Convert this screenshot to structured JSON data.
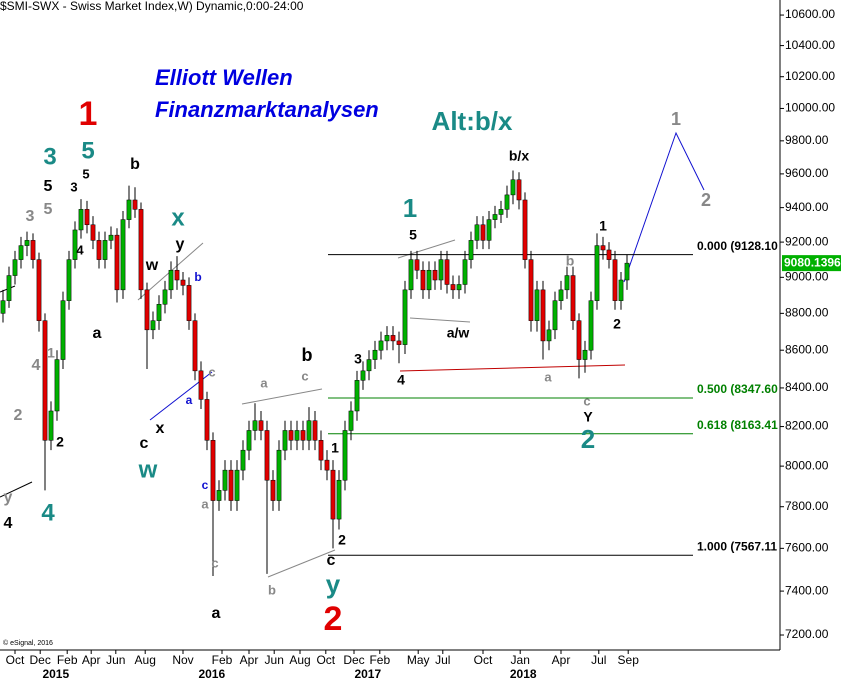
{
  "chart_data": {
    "type": "candlestick",
    "title": "$SMI-SWX - Swiss Market Index,W) Dynamic,0:00-24:00",
    "copyright": "© eSignal, 2016",
    "log_scale": true,
    "up_color": "#00b000",
    "down_color": "#e00000",
    "xlim": [
      -0.5,
      129.5
    ],
    "ylim": [
      7133,
      10700
    ],
    "yticks": [
      {
        "value": 10600,
        "label": "10600.00"
      },
      {
        "value": 10400,
        "label": "10400.00"
      },
      {
        "value": 10200,
        "label": "10200.00"
      },
      {
        "value": 10000,
        "label": "10000.00"
      },
      {
        "value": 9800,
        "label": "9800.00"
      },
      {
        "value": 9600,
        "label": "9600.00"
      },
      {
        "value": 9400,
        "label": "9400.00"
      },
      {
        "value": 9200,
        "label": "9200.00"
      },
      {
        "value": 9000,
        "label": "9000.00"
      },
      {
        "value": 8800,
        "label": "8800.00"
      },
      {
        "value": 8600,
        "label": "8600.00"
      },
      {
        "value": 8400,
        "label": "8400.00"
      },
      {
        "value": 8200,
        "label": "8200.00"
      },
      {
        "value": 8000,
        "label": "8000.00"
      },
      {
        "value": 7800,
        "label": "7800.00"
      },
      {
        "value": 7600,
        "label": "7600.00"
      },
      {
        "value": 7400,
        "label": "7400.00"
      },
      {
        "value": 7200,
        "label": "7200.00"
      }
    ],
    "xticks": [
      {
        "value": 2,
        "label": "Oct"
      },
      {
        "value": 6.2,
        "label": "Dec"
      },
      {
        "value": 10.7,
        "label": "Feb"
      },
      {
        "value": 14.7,
        "label": "Apr"
      },
      {
        "value": 18.8,
        "label": "Jun"
      },
      {
        "value": 23.7,
        "label": "Aug"
      },
      {
        "value": 30,
        "label": "Nov"
      },
      {
        "value": 36.5,
        "label": "Feb"
      },
      {
        "value": 41,
        "label": "Apr"
      },
      {
        "value": 45.2,
        "label": "Jun"
      },
      {
        "value": 49.5,
        "label": "Aug"
      },
      {
        "value": 53.8,
        "label": "Oct"
      },
      {
        "value": 58.5,
        "label": "Dec"
      },
      {
        "value": 62.8,
        "label": "Feb"
      },
      {
        "value": 69.2,
        "label": "May"
      },
      {
        "value": 73.3,
        "label": "Jul"
      },
      {
        "value": 80,
        "label": "Oct"
      },
      {
        "value": 86.2,
        "label": "Jan"
      },
      {
        "value": 93,
        "label": "Apr"
      },
      {
        "value": 99.3,
        "label": "Jul"
      },
      {
        "value": 104.2,
        "label": "Sep"
      }
    ],
    "year_ticks": [
      {
        "value": 8.8,
        "label": "2015"
      },
      {
        "value": 34.8,
        "label": "2016"
      },
      {
        "value": 60.8,
        "label": "2017"
      },
      {
        "value": 86.7,
        "label": "2018"
      }
    ],
    "open": [
      8800,
      8870,
      9010,
      9100,
      9180,
      9210,
      9100,
      8760,
      8130,
      8280,
      8550,
      8870,
      9100,
      9270,
      9390,
      9300,
      9210,
      9100,
      9210,
      9240,
      8930,
      9330,
      9445,
      9390,
      8930,
      8710,
      8760,
      8850,
      8930,
      9040,
      8985,
      8955,
      8760,
      8490,
      8340,
      8130,
      7830,
      7880,
      7980,
      7830,
      7980,
      8080,
      8180,
      8230,
      8180,
      7930,
      7830,
      8080,
      8180,
      8130,
      8180,
      8130,
      8230,
      8130,
      8030,
      7980,
      7740,
      7930,
      8180,
      8280,
      8440,
      8490,
      8550,
      8600,
      8650,
      8680,
      8650,
      8630,
      8930,
      9100,
      9040,
      8930,
      9040,
      8985,
      9100,
      8960,
      8930,
      8960,
      9100,
      9210,
      9300,
      9210,
      9330,
      9360,
      9390,
      9475,
      9565,
      9445,
      9100,
      8760,
      8930,
      8650,
      8710,
      8870,
      8930,
      9010,
      8760,
      8550,
      8600,
      8870,
      9180,
      9155,
      9100,
      8870,
      8985
    ],
    "high": [
      8930,
      9060,
      9150,
      9230,
      9260,
      9250,
      9140,
      8800,
      8330,
      8600,
      8920,
      9150,
      9320,
      9450,
      9440,
      9350,
      9260,
      9260,
      9290,
      9280,
      9380,
      9530,
      9520,
      9430,
      8970,
      8810,
      8900,
      8980,
      9090,
      9120,
      9030,
      9000,
      8800,
      8540,
      8380,
      8170,
      7930,
      8030,
      8030,
      8030,
      8130,
      8230,
      8320,
      8280,
      8230,
      7980,
      8130,
      8230,
      8230,
      8230,
      8230,
      8300,
      8280,
      8180,
      8080,
      8030,
      7980,
      8230,
      8330,
      8490,
      8540,
      8600,
      8650,
      8700,
      8730,
      8730,
      8700,
      8980,
      9150,
      9150,
      9090,
      9090,
      9090,
      9150,
      9150,
      9010,
      9010,
      9150,
      9260,
      9350,
      9350,
      9380,
      9410,
      9440,
      9530,
      9620,
      9610,
      9490,
      9150,
      8980,
      8980,
      8760,
      8920,
      8980,
      9060,
      9060,
      8800,
      8650,
      8920,
      9250,
      9230,
      9200,
      9150,
      9030,
      9130
    ],
    "low": [
      8750,
      8830,
      8960,
      9050,
      9120,
      9050,
      8700,
      7880,
      8080,
      8230,
      8500,
      8820,
      9050,
      9220,
      9250,
      9160,
      9050,
      9050,
      9160,
      8860,
      8880,
      9280,
      9340,
      8880,
      8500,
      8660,
      8710,
      8800,
      8880,
      8930,
      8900,
      8710,
      8440,
      8290,
      8080,
      7470,
      7780,
      7830,
      7780,
      7780,
      7930,
      8030,
      8130,
      8130,
      7480,
      7780,
      7780,
      8030,
      8080,
      8080,
      8080,
      8080,
      8080,
      7980,
      7930,
      7600,
      7690,
      7880,
      8130,
      8230,
      8390,
      8440,
      8500,
      8550,
      8600,
      8600,
      8530,
      8580,
      8880,
      8990,
      8880,
      8880,
      8930,
      8930,
      8910,
      8880,
      8880,
      8910,
      9050,
      9160,
      9160,
      9160,
      9280,
      9310,
      9340,
      9420,
      9390,
      9050,
      8700,
      8700,
      8550,
      8600,
      8660,
      8820,
      8880,
      8710,
      8450,
      8480,
      8550,
      8820,
      9100,
      9050,
      8820,
      8820,
      8930
    ],
    "close": [
      8870,
      9010,
      9100,
      9180,
      9210,
      9100,
      8760,
      8130,
      8280,
      8550,
      8870,
      9100,
      9270,
      9390,
      9300,
      9210,
      9100,
      9210,
      9240,
      8930,
      9330,
      9445,
      9390,
      8930,
      8710,
      8760,
      8850,
      8930,
      9040,
      8985,
      8955,
      8760,
      8490,
      8340,
      8130,
      7830,
      7880,
      7980,
      7830,
      7980,
      8080,
      8180,
      8230,
      8180,
      7930,
      7830,
      8080,
      8180,
      8130,
      8180,
      8130,
      8230,
      8130,
      8030,
      7980,
      7740,
      7930,
      8180,
      8280,
      8440,
      8490,
      8550,
      8600,
      8650,
      8680,
      8650,
      8630,
      8930,
      9100,
      9040,
      8930,
      9040,
      8985,
      9100,
      8960,
      8930,
      8960,
      9100,
      9210,
      9300,
      9210,
      9330,
      9360,
      9390,
      9475,
      9565,
      9445,
      9100,
      8760,
      8930,
      8650,
      8710,
      8870,
      8930,
      9010,
      8760,
      8550,
      8600,
      8870,
      9180,
      9155,
      9100,
      8870,
      8985,
      9080
    ],
    "last_price": 9080.1396,
    "last_price_color": "#00b000",
    "levels": [
      {
        "value": 9128.1,
        "label": "0.000 (9128.10",
        "color": "#000000"
      },
      {
        "value": 8347.6,
        "label": "0.500 (8347.60",
        "color": "#008000"
      },
      {
        "value": 8163.41,
        "label": "0.618 (8163.41",
        "color": "#008000"
      },
      {
        "value": 7567.11,
        "label": "1.000 (7567.11",
        "color": "#000000"
      }
    ],
    "annotations": [
      "Elliott Wellen",
      "Finanzmarktanalysen",
      "Alt:b/x",
      "1",
      "3",
      "5",
      "5",
      "5",
      "3",
      "3",
      "5",
      "b",
      "x",
      "y",
      "w",
      "b",
      "4",
      "a",
      "4",
      "1",
      "2",
      "2",
      "4",
      "y",
      "4",
      "c",
      "x",
      "w",
      "a",
      "c",
      "c",
      "a",
      "c",
      "a",
      "a",
      "c",
      "b",
      "b",
      "1",
      "2",
      "c",
      "y",
      "2",
      "3",
      "4",
      "1",
      "5",
      "a/w",
      "b/x",
      "b",
      "1",
      "2",
      "a",
      "c",
      "Y",
      "2",
      "1",
      "2"
    ]
  }
}
